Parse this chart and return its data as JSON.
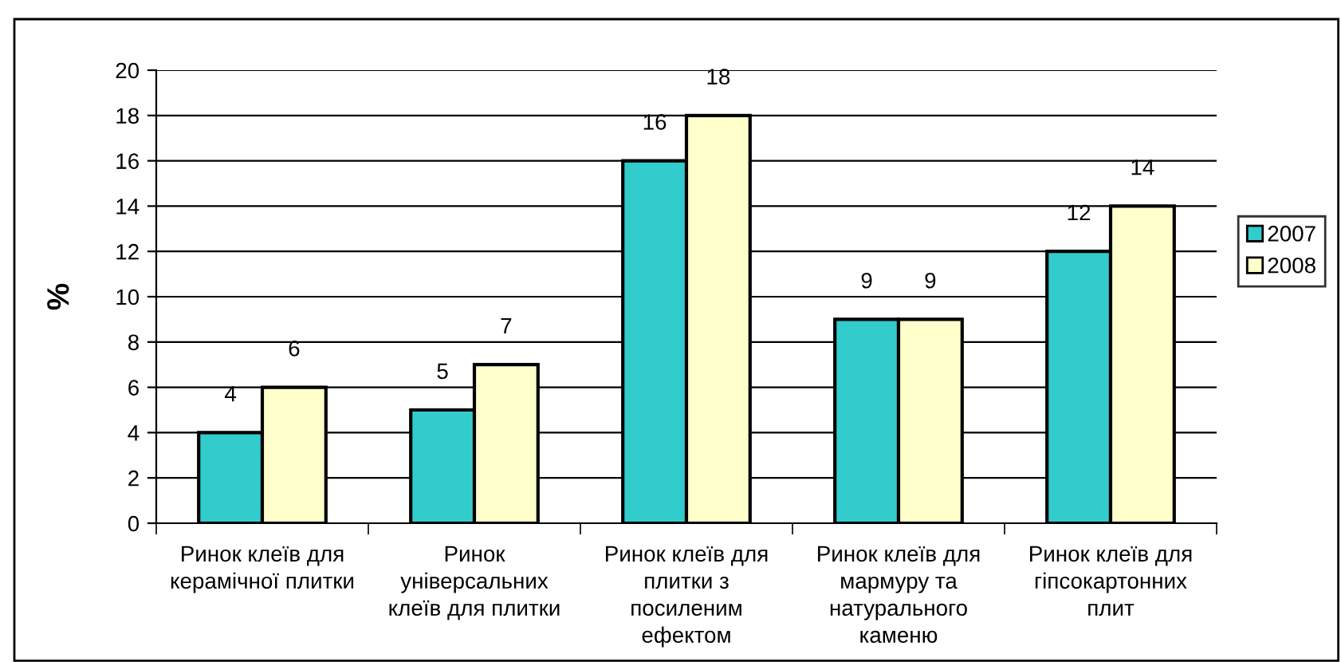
{
  "chart_data": {
    "type": "bar",
    "ylabel": "%",
    "categories": [
      "Ринок клеїв для\nкерамічної плитки",
      "Ринок\nуніверсальних\nклеїв для плитки",
      "Ринок клеїв для\nплитки з\nпосиленим\nефектом",
      "Ринок клеїв для\nмармуру та\nнатурального\nкаменю",
      "Ринок клеїв для\nгіпсокартонних\nплит"
    ],
    "series": [
      {
        "name": "2007",
        "color": "#33cccc",
        "values": [
          4,
          5,
          16,
          9,
          12
        ]
      },
      {
        "name": "2008",
        "color": "#ffffcc",
        "values": [
          6,
          7,
          18,
          9,
          14
        ]
      }
    ],
    "ylim": [
      0,
      20
    ],
    "yticks": [
      0,
      2,
      4,
      6,
      8,
      10,
      12,
      14,
      16,
      18,
      20
    ],
    "grid": "y",
    "legend": "right",
    "data_labels": true
  }
}
